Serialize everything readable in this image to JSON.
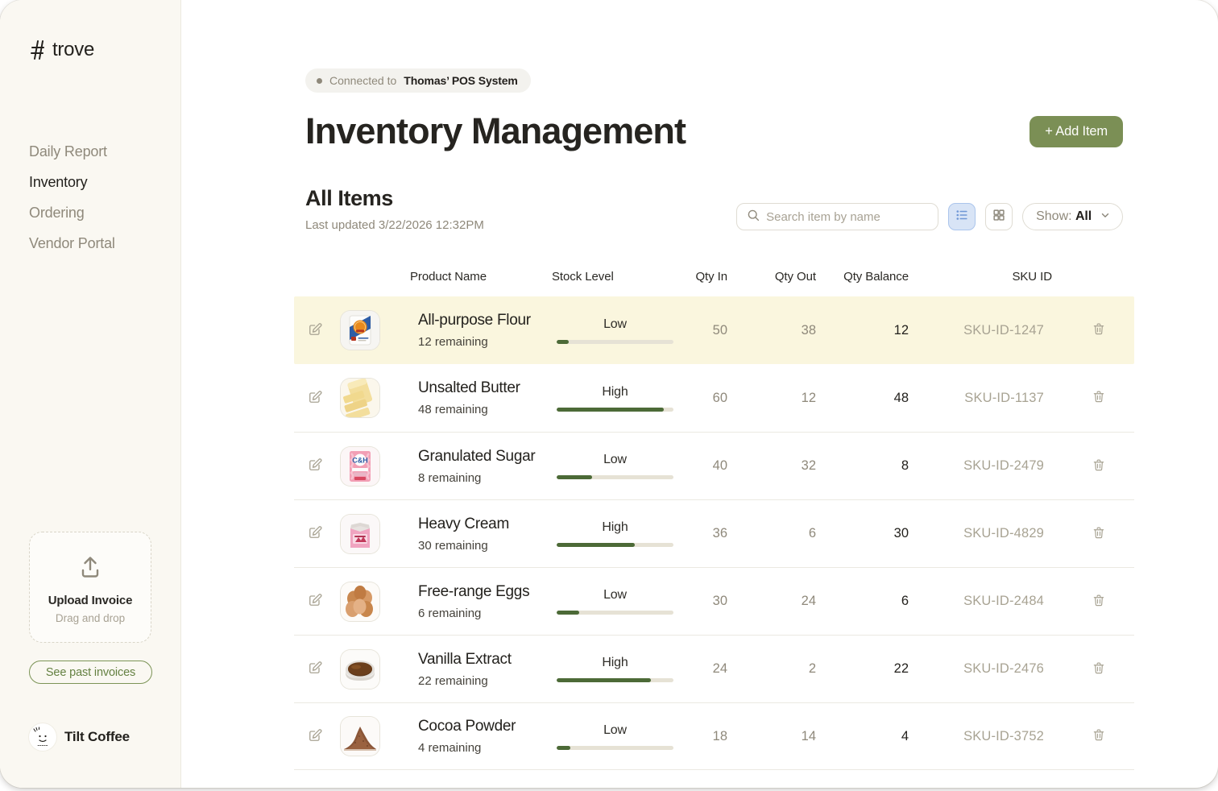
{
  "app": {
    "brand": {
      "glyph_icon": "trove-ladder-icon",
      "name": "trove"
    },
    "nav": [
      {
        "label": "Daily Report",
        "active": false
      },
      {
        "label": "Inventory",
        "active": true
      },
      {
        "label": "Ordering",
        "active": false
      },
      {
        "label": "Vendor Portal",
        "active": false
      }
    ],
    "upload": {
      "icon": "upload-icon",
      "title": "Upload Invoice",
      "subtitle": "Drag and drop"
    },
    "past_invoices_label": "See past invoices",
    "footer_brand": {
      "icon": "tilt-coffee-avatar",
      "name": "Tilt Coffee"
    }
  },
  "header": {
    "connection": {
      "prefix": "Connected to",
      "system": "Thomas’ POS System"
    },
    "title": "Inventory Management",
    "add_item_label": "+ Add Item"
  },
  "toolbar": {
    "section_title": "All Items",
    "last_updated": "Last updated 3/22/2026 12:32PM",
    "search_placeholder": "Search item by name",
    "view_toggles": [
      {
        "name": "list-view",
        "active": true
      },
      {
        "name": "grid-view",
        "active": false
      }
    ],
    "show_filter": {
      "label": "Show:",
      "value": "All"
    }
  },
  "table": {
    "columns": [
      "Product Name",
      "Stock Level",
      "Qty In",
      "Qty Out",
      "Qty Balance",
      "SKU ID"
    ],
    "rows": [
      {
        "name": "All-purpose Flour",
        "remaining": "12 remaining",
        "image": "flour-bag",
        "level": "Low",
        "stock_percent": 10,
        "qty_in": "50",
        "qty_out": "38",
        "qty_balance": "12",
        "sku": "SKU-ID-1247",
        "highlighted": true
      },
      {
        "name": "Unsalted Butter",
        "remaining": "48 remaining",
        "image": "butter-sticks",
        "level": "High",
        "stock_percent": 92,
        "qty_in": "60",
        "qty_out": "12",
        "qty_balance": "48",
        "sku": "SKU-ID-1137",
        "highlighted": false
      },
      {
        "name": "Granulated Sugar",
        "remaining": "8 remaining",
        "image": "sugar-bag",
        "level": "Low",
        "stock_percent": 30,
        "qty_in": "40",
        "qty_out": "32",
        "qty_balance": "8",
        "sku": "SKU-ID-2479",
        "highlighted": false
      },
      {
        "name": "Heavy Cream",
        "remaining": "30 remaining",
        "image": "cream-carton",
        "level": "High",
        "stock_percent": 67,
        "qty_in": "36",
        "qty_out": "6",
        "qty_balance": "30",
        "sku": "SKU-ID-4829",
        "highlighted": false
      },
      {
        "name": "Free-range Eggs",
        "remaining": "6 remaining",
        "image": "eggs",
        "level": "Low",
        "stock_percent": 19,
        "qty_in": "30",
        "qty_out": "24",
        "qty_balance": "6",
        "sku": "SKU-ID-2484",
        "highlighted": false
      },
      {
        "name": "Vanilla Extract",
        "remaining": "22 remaining",
        "image": "vanilla-bowl",
        "level": "High",
        "stock_percent": 81,
        "qty_in": "24",
        "qty_out": "2",
        "qty_balance": "22",
        "sku": "SKU-ID-2476",
        "highlighted": false
      },
      {
        "name": "Cocoa Powder",
        "remaining": "4 remaining",
        "image": "cocoa-pile",
        "level": "Low",
        "stock_percent": 12,
        "qty_in": "18",
        "qty_out": "14",
        "qty_balance": "4",
        "sku": "SKU-ID-3752",
        "highlighted": false
      }
    ]
  },
  "colors": {
    "accent_green": "#7B8F55",
    "outline_green": "#7C9457",
    "progress_fill": "#4C6A37",
    "progress_track": "#E6E2D5",
    "row_highlight": "#FAF6DE",
    "sidebar_bg": "#FAF8F2",
    "toggle_active_blue": "#D8E4F6",
    "muted_text": "#8F897B"
  }
}
